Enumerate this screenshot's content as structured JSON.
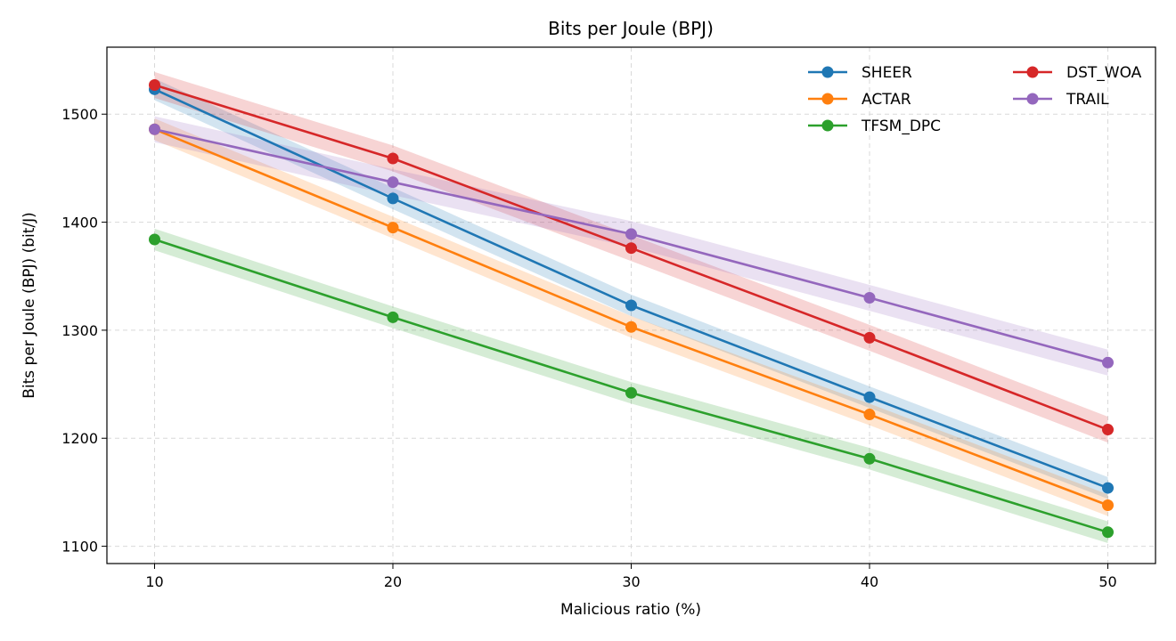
{
  "chart_data": {
    "type": "line",
    "title": "Bits per Joule (BPJ)",
    "xlabel": "Malicious ratio (%)",
    "ylabel": "Bits per Joule (BPJ) (bit/J)",
    "x": [
      10,
      20,
      30,
      40,
      50
    ],
    "xlim": [
      8,
      52
    ],
    "ylim": [
      1084,
      1562
    ],
    "xticks": [
      10,
      20,
      30,
      40,
      50
    ],
    "yticks": [
      1100,
      1200,
      1300,
      1400,
      1500
    ],
    "grid": true,
    "legend": "top-right",
    "series": [
      {
        "name": "SHEER",
        "color": "#1f77b4",
        "values": [
          1523,
          1422,
          1323,
          1238,
          1154
        ],
        "band": 10
      },
      {
        "name": "ACTAR",
        "color": "#ff7f0e",
        "values": [
          1486,
          1395,
          1303,
          1222,
          1138
        ],
        "band": 10
      },
      {
        "name": "TFSM_DPC",
        "color": "#2ca02c",
        "values": [
          1384,
          1312,
          1242,
          1181,
          1113
        ],
        "band": 10
      },
      {
        "name": "DST_WOA",
        "color": "#d62728",
        "values": [
          1527,
          1459,
          1376,
          1293,
          1208
        ],
        "band": 12
      },
      {
        "name": "TRAIL",
        "color": "#9467bd",
        "values": [
          1486,
          1437,
          1389,
          1330,
          1270
        ],
        "band": 12
      }
    ]
  }
}
